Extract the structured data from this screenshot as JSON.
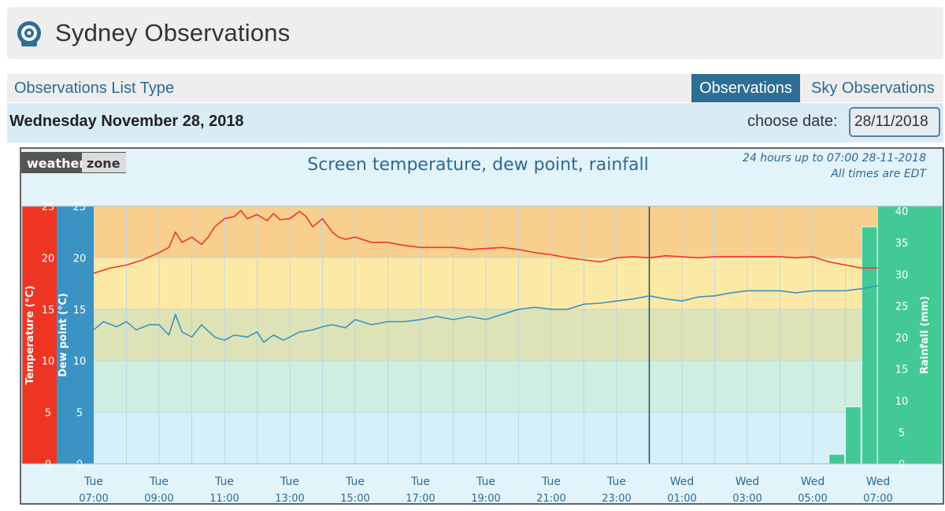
{
  "page": {
    "title": "Sydney Observations",
    "list_type_label": "Observations List Type",
    "tabs": [
      {
        "label": "Observations",
        "active": true
      },
      {
        "label": "Sky Observations",
        "active": false
      }
    ],
    "date_heading": "Wednesday November 28, 2018",
    "choose_date_label": "choose date:",
    "date_value": "28/11/2018"
  },
  "colors": {
    "temperature": "#ee3524",
    "dew_point": "#3b93c4",
    "rainfall": "#43c995",
    "accent": "#2f6e94"
  },
  "chart_data": {
    "type": "line",
    "title": "Screen temperature, dew point, rainfall",
    "subtitle": "24 hours up to 07:00 28-11-2018",
    "note": "All times are EDT",
    "brand": {
      "left": "weather",
      "right": "zone"
    },
    "axes": {
      "temperature": {
        "label": "Temperature (°C)",
        "range": [
          0,
          25
        ],
        "ticks": [
          "0",
          "5",
          "10",
          "15",
          "20",
          "25"
        ]
      },
      "dew_point": {
        "label": "Dew point (°C)",
        "range": [
          0,
          25
        ],
        "ticks": [
          "0",
          "5",
          "10",
          "15",
          "20",
          "25"
        ]
      },
      "rainfall": {
        "label": "Rainfall (mm)",
        "range": [
          0,
          40
        ],
        "ticks": [
          "0",
          "5",
          "10",
          "15",
          "20",
          "25",
          "30",
          "35",
          "40"
        ]
      }
    },
    "x_range_hours": [
      0,
      24
    ],
    "x_ticks": [
      {
        "day": "Tue",
        "time": "07:00"
      },
      {
        "day": "Tue",
        "time": "09:00"
      },
      {
        "day": "Tue",
        "time": "11:00"
      },
      {
        "day": "Tue",
        "time": "13:00"
      },
      {
        "day": "Tue",
        "time": "15:00"
      },
      {
        "day": "Tue",
        "time": "17:00"
      },
      {
        "day": "Tue",
        "time": "19:00"
      },
      {
        "day": "Tue",
        "time": "21:00"
      },
      {
        "day": "Tue",
        "time": "23:00"
      },
      {
        "day": "Wed",
        "time": "01:00"
      },
      {
        "day": "Wed",
        "time": "03:00"
      },
      {
        "day": "Wed",
        "time": "05:00"
      },
      {
        "day": "Wed",
        "time": "07:00"
      }
    ],
    "midnight_hour": 17,
    "series": [
      {
        "name": "Temperature",
        "hours": [
          0,
          0.5,
          1,
          1.5,
          2,
          2.3,
          2.5,
          2.7,
          3,
          3.3,
          3.5,
          3.7,
          4,
          4.3,
          4.5,
          4.7,
          5,
          5.3,
          5.5,
          5.7,
          6,
          6.3,
          6.5,
          6.7,
          7,
          7.3,
          7.5,
          7.7,
          8,
          8.5,
          9,
          9.5,
          10,
          10.5,
          11,
          11.5,
          12,
          12.5,
          13,
          13.5,
          14,
          14.5,
          15,
          15.5,
          16,
          16.5,
          17,
          17.5,
          18,
          18.5,
          19,
          19.5,
          20,
          20.5,
          21,
          21.5,
          22,
          22.5,
          23,
          23.5,
          24
        ],
        "values": [
          18.5,
          19.0,
          19.3,
          19.8,
          20.5,
          21.0,
          22.5,
          21.5,
          22.0,
          21.3,
          22.0,
          23.0,
          23.8,
          24.0,
          24.6,
          23.8,
          24.2,
          23.6,
          24.3,
          23.7,
          23.8,
          24.5,
          24.0,
          23.0,
          23.8,
          22.5,
          22.0,
          21.8,
          22.0,
          21.5,
          21.5,
          21.2,
          21.0,
          21.0,
          21.0,
          20.8,
          20.9,
          21.0,
          20.8,
          20.5,
          20.3,
          20.0,
          19.8,
          19.6,
          20.0,
          20.1,
          20.0,
          20.2,
          20.1,
          20.0,
          20.1,
          20.1,
          20.1,
          20.1,
          20.1,
          20.0,
          20.1,
          19.6,
          19.3,
          19.0,
          19.0
        ]
      },
      {
        "name": "Dew point",
        "hours": [
          0,
          0.3,
          0.7,
          1,
          1.3,
          1.7,
          2,
          2.3,
          2.5,
          2.7,
          3,
          3.3,
          3.7,
          4,
          4.3,
          4.7,
          5,
          5.2,
          5.5,
          5.8,
          6,
          6.3,
          6.7,
          7,
          7.3,
          7.7,
          8,
          8.5,
          9,
          9.5,
          10,
          10.5,
          11,
          11.5,
          12,
          12.5,
          13,
          13.5,
          14,
          14.5,
          15,
          15.5,
          16,
          16.5,
          17,
          17.5,
          18,
          18.5,
          19,
          19.5,
          20,
          20.5,
          21,
          21.5,
          22,
          22.5,
          23,
          23.5,
          24
        ],
        "values": [
          13.0,
          13.8,
          13.3,
          13.8,
          13.0,
          13.5,
          13.5,
          12.5,
          14.5,
          12.8,
          12.3,
          13.5,
          12.3,
          12.0,
          12.5,
          12.3,
          12.8,
          11.8,
          12.5,
          12.0,
          12.3,
          12.8,
          13.0,
          13.3,
          13.5,
          13.2,
          14.0,
          13.5,
          13.8,
          13.8,
          14.0,
          14.3,
          14.0,
          14.3,
          14.0,
          14.5,
          15.0,
          15.2,
          15.0,
          15.0,
          15.5,
          15.6,
          15.8,
          16.0,
          16.3,
          16.0,
          15.8,
          16.2,
          16.3,
          16.6,
          16.8,
          16.8,
          16.8,
          16.6,
          16.8,
          16.8,
          16.8,
          17.0,
          17.3
        ]
      },
      {
        "name": "Rainfall",
        "type": "bar",
        "hours": [
          22.5,
          23,
          23.5
        ],
        "values": [
          1.5,
          9.0,
          37.5
        ]
      }
    ]
  }
}
